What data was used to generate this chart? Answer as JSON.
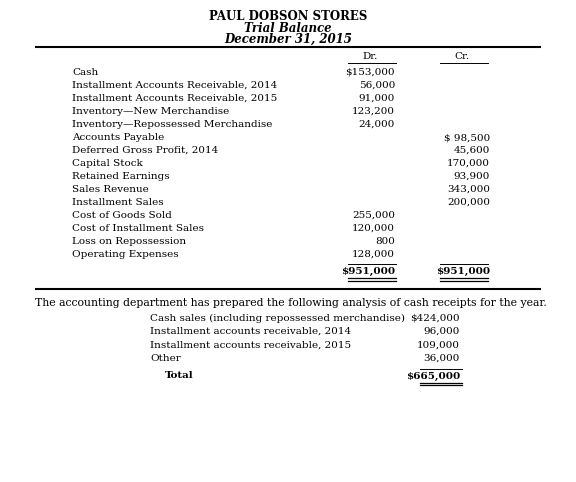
{
  "title1": "PAUL DOBSON STORES",
  "title2": "Trial Balance",
  "title3": "December 31, 2015",
  "col_dr": "Dr.",
  "col_cr": "Cr.",
  "trial_balance": [
    {
      "account": "Cash",
      "dr": "$153,000",
      "cr": ""
    },
    {
      "account": "Installment Accounts Receivable, 2014",
      "dr": "56,000",
      "cr": ""
    },
    {
      "account": "Installment Accounts Receivable, 2015",
      "dr": "91,000",
      "cr": ""
    },
    {
      "account": "Inventory—New Merchandise",
      "dr": "123,200",
      "cr": ""
    },
    {
      "account": "Inventory—Repossessed Merchandise",
      "dr": "24,000",
      "cr": ""
    },
    {
      "account": "Accounts Payable",
      "dr": "",
      "cr": "$ 98,500"
    },
    {
      "account": "Deferred Gross Profit, 2014",
      "dr": "",
      "cr": "45,600"
    },
    {
      "account": "Capital Stock",
      "dr": "",
      "cr": "170,000"
    },
    {
      "account": "Retained Earnings",
      "dr": "",
      "cr": "93,900"
    },
    {
      "account": "Sales Revenue",
      "dr": "",
      "cr": "343,000"
    },
    {
      "account": "Installment Sales",
      "dr": "",
      "cr": "200,000"
    },
    {
      "account": "Cost of Goods Sold",
      "dr": "255,000",
      "cr": ""
    },
    {
      "account": "Cost of Installment Sales",
      "dr": "120,000",
      "cr": ""
    },
    {
      "account": "Loss on Repossession",
      "dr": "800",
      "cr": ""
    },
    {
      "account": "Operating Expenses",
      "dr": "128,000",
      "cr": ""
    }
  ],
  "total_dr": "$951,000",
  "total_cr": "$951,000",
  "separator_text": "The accounting department has prepared the following analysis of cash receipts for the year.",
  "cash_receipts": [
    {
      "label": "Cash sales (including repossessed merchandise)",
      "amount": "$424,000"
    },
    {
      "label": "Installment accounts receivable, 2014",
      "amount": "96,000"
    },
    {
      "label": "Installment accounts receivable, 2015",
      "amount": "109,000"
    },
    {
      "label": "Other",
      "amount": "36,000"
    }
  ],
  "cash_total_label": "Total",
  "cash_total_amount": "$665,000",
  "bg_color": "#ffffff",
  "text_color": "#000000",
  "fs_title": 8.5,
  "fs_body": 7.5,
  "fs_sep": 7.8,
  "pw": 576,
  "ph": 482
}
